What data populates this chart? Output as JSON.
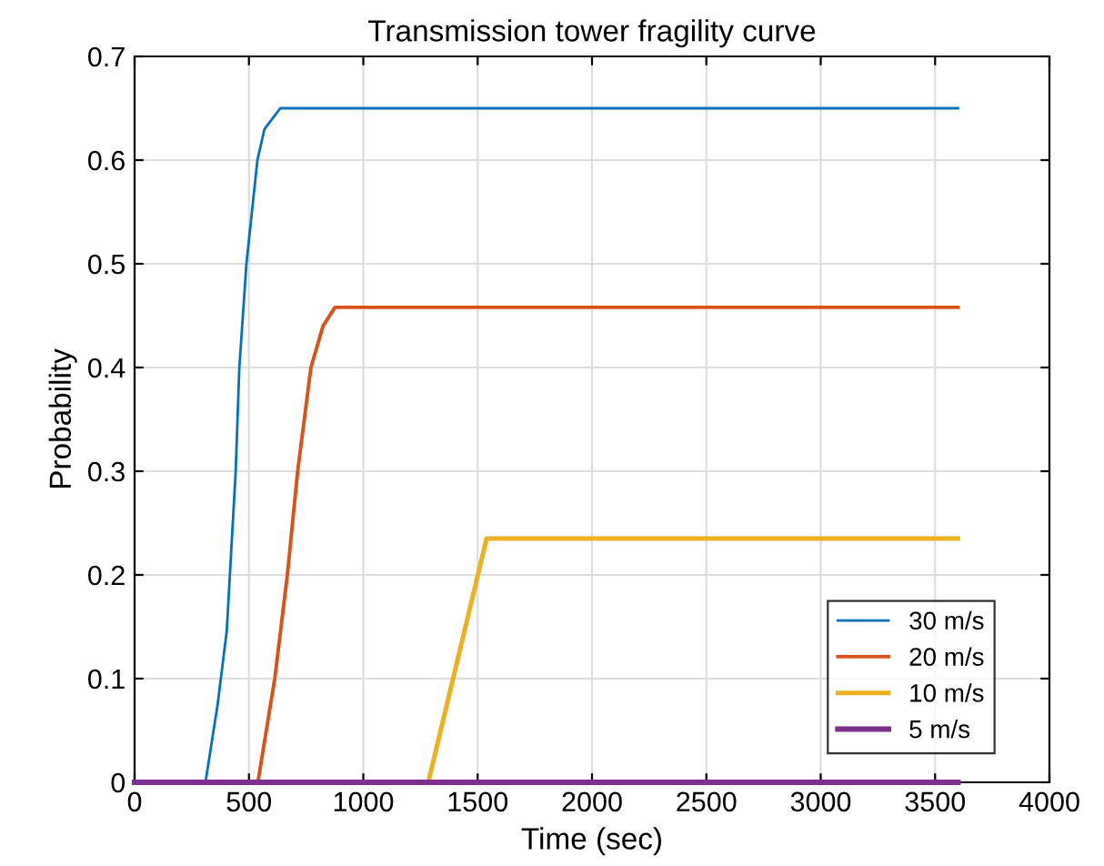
{
  "chart_data": {
    "type": "line",
    "title": "Transmission tower fragility curve",
    "xlabel": "Time (sec)",
    "ylabel": "Probability",
    "xlim": [
      0,
      4000
    ],
    "ylim": [
      0,
      0.7
    ],
    "xticks": [
      0,
      500,
      1000,
      1500,
      2000,
      2500,
      3000,
      3500,
      4000
    ],
    "yticks": [
      0,
      0.1,
      0.2,
      0.3,
      0.4,
      0.5,
      0.6,
      0.7
    ],
    "grid": true,
    "legend": "bottom right",
    "series": [
      {
        "name": "30 m/s",
        "color": "#0072bd",
        "x": [
          0,
          310,
          363,
          403,
          442,
          458,
          489,
          537,
          568,
          637,
          3600
        ],
        "values": [
          0,
          0,
          0.075,
          0.146,
          0.3,
          0.4,
          0.5,
          0.6,
          0.63,
          0.65,
          0.65
        ]
      },
      {
        "name": "20 m/s",
        "color": "#d95319",
        "x": [
          0,
          539,
          613,
          668,
          713,
          771,
          824,
          876,
          3600
        ],
        "values": [
          0,
          0,
          0.1,
          0.2,
          0.3,
          0.4,
          0.44,
          0.458,
          0.458
        ]
      },
      {
        "name": "10 m/s",
        "color": "#edb120",
        "x": [
          0,
          1284,
          1539,
          3600
        ],
        "values": [
          0,
          0,
          0.235,
          0.235
        ]
      },
      {
        "name": "5 m/s",
        "color": "#7e2f8e",
        "x": [
          0,
          3600
        ],
        "values": [
          0,
          0
        ]
      }
    ]
  }
}
